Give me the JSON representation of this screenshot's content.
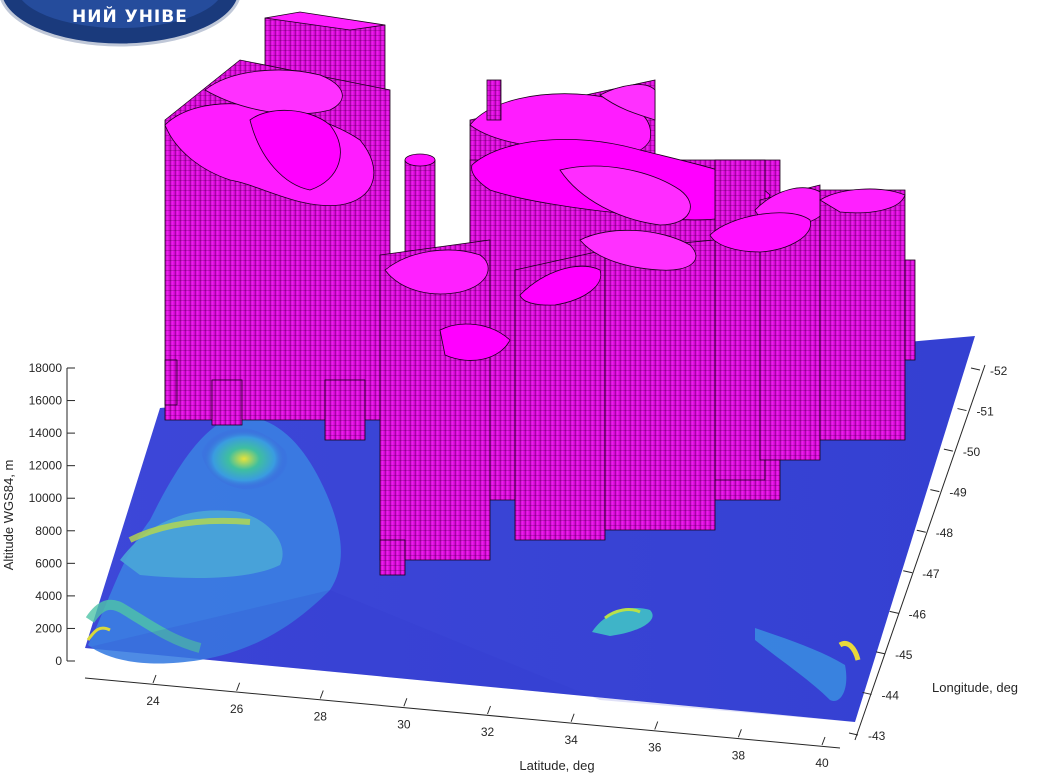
{
  "logo": {
    "text": "НИЙ УНІВЕ"
  },
  "chart_data": {
    "type": "surface3d",
    "xlabel": "Latitude, deg",
    "ylabel": "Longitude, deg",
    "zlabel": "Altitude WGS84, m",
    "x_ticks": [
      "24",
      "26",
      "28",
      "30",
      "32",
      "34",
      "36",
      "38",
      "40"
    ],
    "y_ticks": [
      "-43",
      "-44",
      "-45",
      "-46",
      "-47",
      "-48",
      "-49",
      "-50",
      "-51",
      "-52"
    ],
    "z_ticks": [
      "0",
      "2000",
      "4000",
      "6000",
      "8000",
      "10000",
      "12000",
      "14000",
      "16000",
      "18000"
    ],
    "xlim": [
      22.5,
      40.5
    ],
    "ylim": [
      -52.5,
      -42.5
    ],
    "zlim": [
      0,
      18000
    ],
    "surfaces": [
      {
        "name": "terrain",
        "colormap": "parula",
        "color_low": "#3d3fd1",
        "color_high": "#f0e52a"
      },
      {
        "name": "cloud-volumes",
        "color": "#ff00ff",
        "edge_color": "#000000"
      }
    ]
  }
}
